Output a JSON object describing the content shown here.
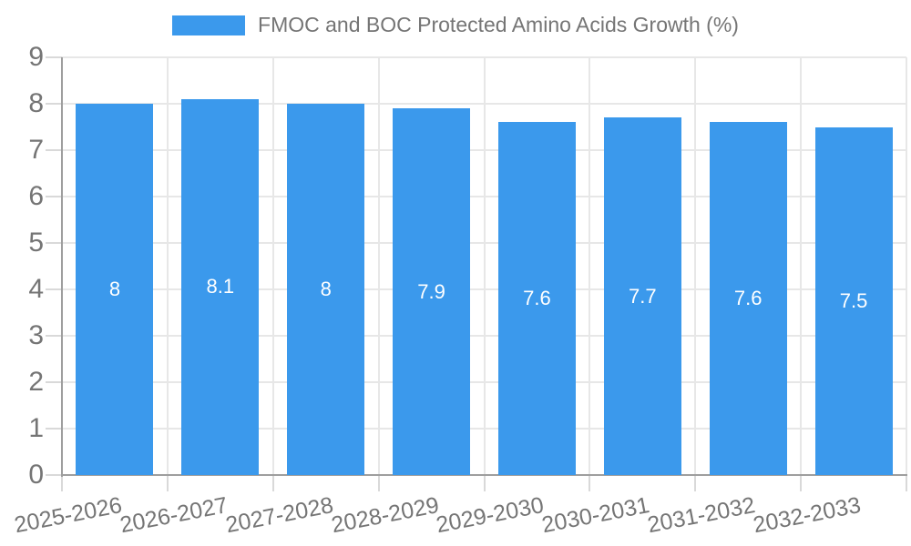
{
  "chart_data": {
    "type": "bar",
    "title": "FMOC and BOC Protected Amino Acids Growth (%)",
    "legend": {
      "position": "top",
      "label": "FMOC and BOC Protected Amino Acids Growth (%)",
      "swatch_color": "#3B99EC"
    },
    "categories": [
      "2025-2026",
      "2026-2027",
      "2027-2028",
      "2028-2029",
      "2029-2030",
      "2030-2031",
      "2031-2032",
      "2032-2033"
    ],
    "series": [
      {
        "name": "FMOC and BOC Protected Amino Acids Growth (%)",
        "values": [
          8,
          8.1,
          8,
          7.9,
          7.6,
          7.7,
          7.6,
          7.5
        ],
        "value_labels": [
          "8",
          "8.1",
          "8",
          "7.9",
          "7.6",
          "7.7",
          "7.6",
          "7.5"
        ],
        "color": "#3B99EC"
      }
    ],
    "xlabel": "",
    "ylabel": "",
    "ylim": [
      0,
      9
    ],
    "yticks": [
      0,
      1,
      2,
      3,
      4,
      5,
      6,
      7,
      8,
      9
    ],
    "grid": true,
    "colors": {
      "axis": "#9E9E9E",
      "gridline": "#E7E7E7",
      "tick": "#D9D9D9",
      "axis_text": "#757575",
      "bar_label": "#FFFFFF",
      "background": "#FFFFFF"
    }
  }
}
